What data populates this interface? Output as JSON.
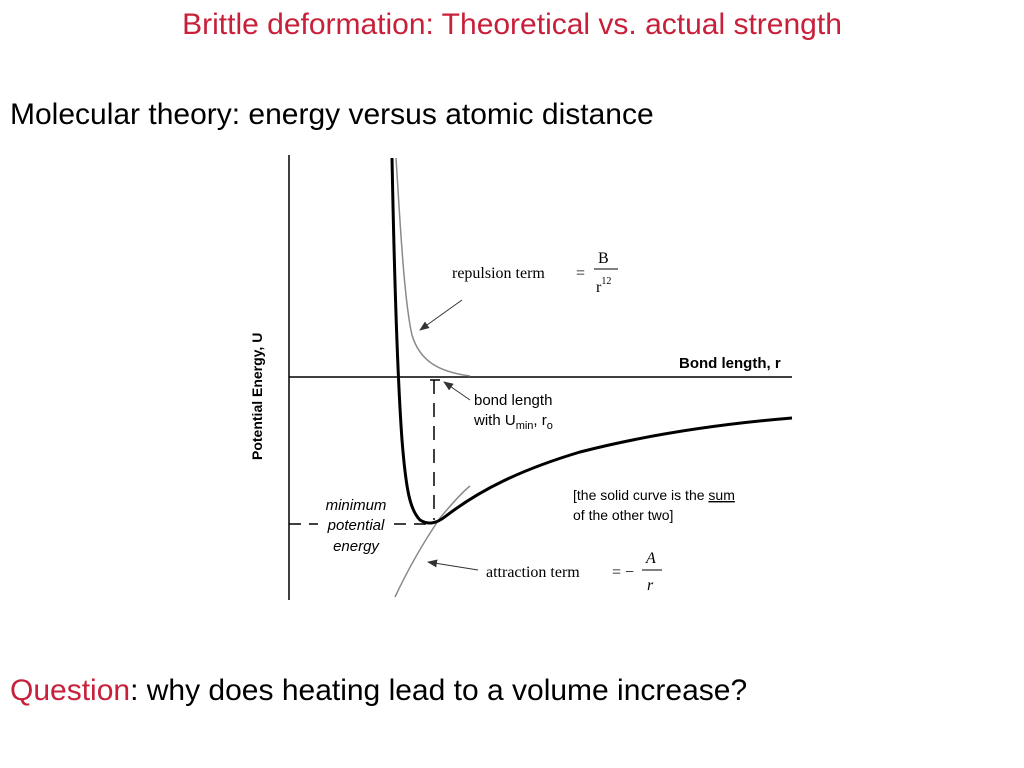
{
  "slide": {
    "title": "Brittle deformation: Theoretical vs. actual strength",
    "subtitle": "Molecular theory: energy versus atomic distance",
    "question_label": "Question",
    "question_text": ": why does heating lead to a volume increase?",
    "accent_color": "#c8203a"
  },
  "diagram": {
    "y_axis_label": "Potential Energy, U",
    "x_axis_label": "Bond  length, r",
    "repulsion": {
      "label": "repulsion term",
      "equals": "=",
      "numerator": "B",
      "denominator": "r",
      "exponent": "12"
    },
    "attraction": {
      "label": "attraction term",
      "equals": "= −",
      "numerator": "A",
      "denominator": "r"
    },
    "bond_length_label": {
      "line1": "bond length",
      "line2_prefix": "with U",
      "line2_sub": "min",
      "line2_mid": ", r",
      "line2_sub2": "o"
    },
    "minimum_energy_label": {
      "line1": "minimum",
      "line2": "potential",
      "line3": "energy"
    },
    "solid_curve_note": {
      "line1_prefix": "[the solid curve is the ",
      "line1_underlined": "sum",
      "line2": "of the other two]"
    }
  }
}
